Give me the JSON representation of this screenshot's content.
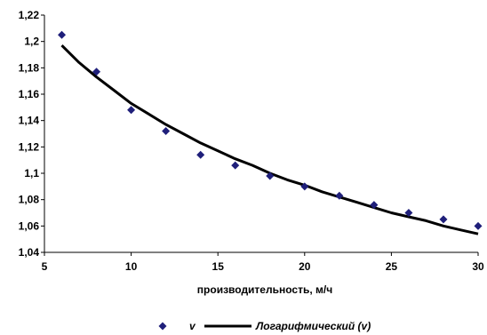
{
  "chart_data": {
    "type": "scatter",
    "xlabel": "производительность, м/ч",
    "ylabel": "",
    "xlim": [
      5,
      30
    ],
    "ylim": [
      1.04,
      1.22
    ],
    "x_ticks": [
      "5",
      "10",
      "15",
      "20",
      "25",
      "30"
    ],
    "y_ticks": [
      "1,04",
      "1,06",
      "1,08",
      "1,1",
      "1,12",
      "1,14",
      "1,16",
      "1,18",
      "1,2",
      "1,22"
    ],
    "grid": false,
    "legend_position": "bottom",
    "series": [
      {
        "name": "v",
        "type": "scatter",
        "marker": "diamond",
        "color": "#1f1f7a",
        "x": [
          6,
          8,
          10,
          12,
          14,
          16,
          18,
          20,
          22,
          24,
          26,
          28,
          30
        ],
        "y": [
          1.205,
          1.177,
          1.148,
          1.132,
          1.114,
          1.106,
          1.098,
          1.09,
          1.083,
          1.076,
          1.07,
          1.065,
          1.06
        ]
      },
      {
        "name": "Логарифмический (v)",
        "type": "line",
        "color": "#000000",
        "x": [
          6,
          7,
          8,
          9,
          10,
          11,
          12,
          13,
          14,
          15,
          16,
          17,
          18,
          19,
          20,
          21,
          22,
          23,
          24,
          25,
          26,
          27,
          28,
          29,
          30
        ],
        "y": [
          1.197,
          1.184,
          1.173,
          1.163,
          1.153,
          1.145,
          1.137,
          1.13,
          1.123,
          1.117,
          1.111,
          1.106,
          1.1,
          1.095,
          1.091,
          1.086,
          1.082,
          1.078,
          1.074,
          1.07,
          1.067,
          1.064,
          1.06,
          1.057,
          1.054
        ]
      }
    ]
  }
}
